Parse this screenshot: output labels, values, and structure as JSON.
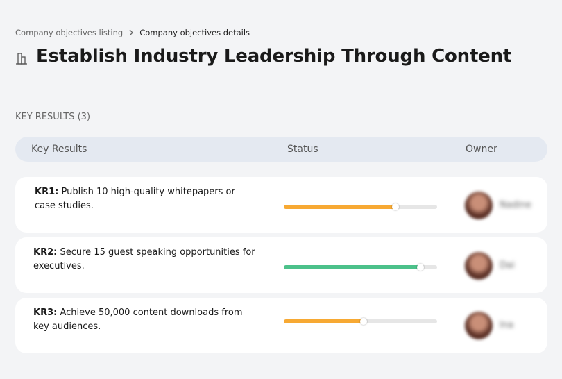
{
  "breadcrumb": {
    "parent": "Company objectives listing",
    "current": "Company objectives details"
  },
  "header": {
    "title": "Establish Industry Leadership Through Content"
  },
  "section": {
    "title": "KEY RESULTS (3)"
  },
  "table": {
    "columns": [
      "Key Results",
      "Status",
      "Owner"
    ],
    "rows": [
      {
        "id": "KR1:",
        "text": "Publish 10 high-quality whitepapers or case studies.",
        "progress": 73,
        "color": "#f7a933",
        "owner": "Nadine"
      },
      {
        "id": "KR2:",
        "text": "Secure 15 guest speaking opportunities for executives.",
        "progress": 89,
        "color": "#4cc18a",
        "owner": "Dai"
      },
      {
        "id": "KR3:",
        "text": "Achieve 50,000 content downloads from key audiences.",
        "progress": 52,
        "color": "#f7a933",
        "owner": "Ina"
      }
    ]
  }
}
